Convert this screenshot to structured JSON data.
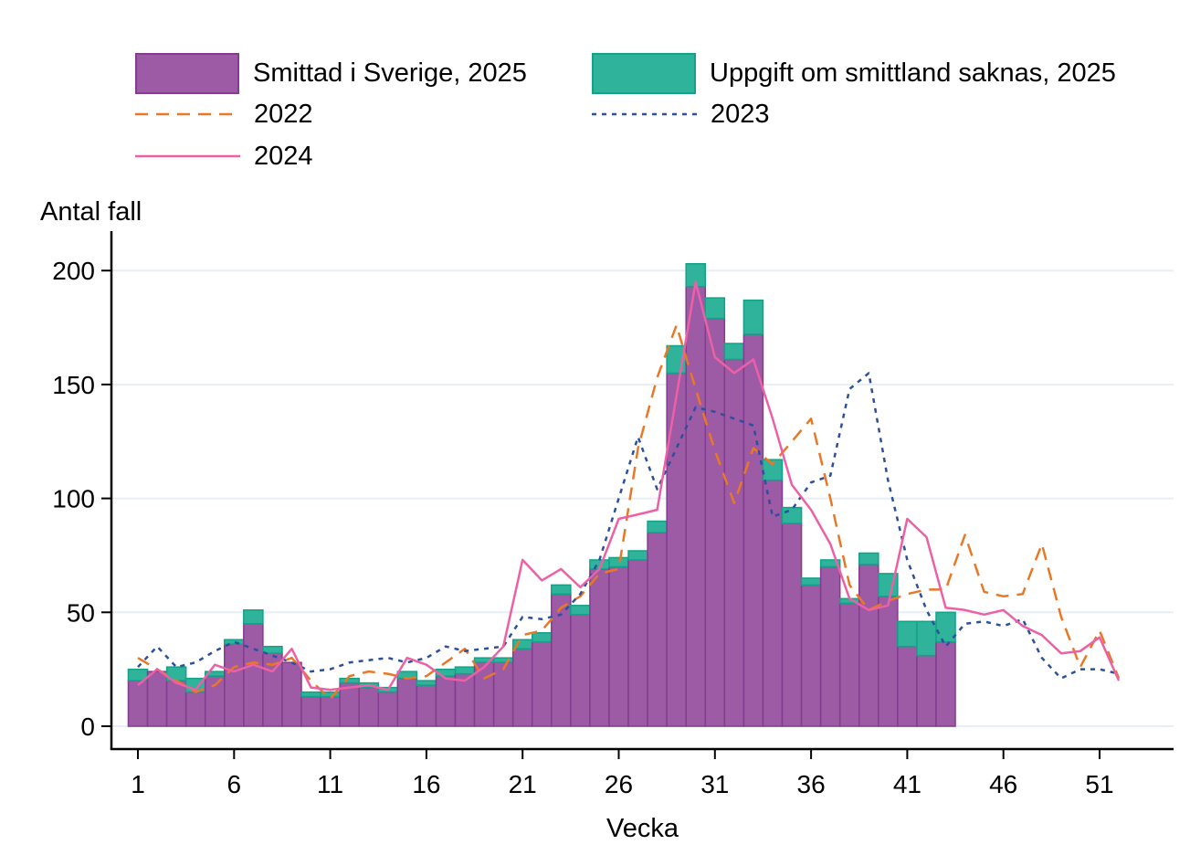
{
  "figure": {
    "y_axis_title": "Antal fall",
    "x_axis_title": "Vecka",
    "y_ticks": [
      0,
      50,
      100,
      150,
      200
    ],
    "x_ticks": [
      1,
      6,
      11,
      16,
      21,
      26,
      31,
      36,
      41,
      46,
      51
    ]
  },
  "legend": [
    {
      "id": "smittad",
      "label": "Smittad i Sverige, 2025",
      "swatch": "rect",
      "color": "#9C5BA4",
      "border": "#833C8E"
    },
    {
      "id": "saknas",
      "label": "Uppgift om smittland saknas, 2025",
      "swatch": "rect",
      "color": "#2FB39A",
      "border": "#13A287"
    },
    {
      "id": "y2022",
      "label": "2022",
      "swatch": "line",
      "dash": "long",
      "color": "#E97826"
    },
    {
      "id": "y2023",
      "label": "2023",
      "swatch": "line",
      "dash": "short",
      "color": "#2C4F9E"
    },
    {
      "id": "y2024",
      "label": "2024",
      "swatch": "line",
      "dash": "none",
      "color": "#ED60A5"
    }
  ],
  "chart_data": {
    "type": "bar+line",
    "title": "",
    "xlabel": "Vecka",
    "ylabel": "Antal fall",
    "ylim": [
      0,
      217
    ],
    "xlim": [
      0,
      54
    ],
    "grid": "horizontal",
    "gridline_color": "#E7EEF5",
    "legend_position": "top",
    "bar_weeks": [
      1,
      2,
      3,
      4,
      5,
      6,
      7,
      8,
      9,
      10,
      11,
      12,
      13,
      14,
      15,
      16,
      17,
      18,
      19,
      20,
      21,
      22,
      23,
      24,
      25,
      26,
      27,
      28,
      29,
      30,
      31,
      32,
      33,
      34,
      35,
      36,
      37,
      38,
      39,
      40,
      41,
      42,
      43
    ],
    "bar_series": [
      {
        "name": "Smittad i Sverige, 2025",
        "color": "#9C5BA4",
        "border": "#833C8E",
        "values": [
          20,
          24,
          20,
          15,
          22,
          36,
          45,
          32,
          28,
          13,
          13,
          19,
          17,
          15,
          21,
          18,
          22,
          23,
          28,
          28,
          34,
          37,
          58,
          49,
          69,
          70,
          73,
          85,
          155,
          193,
          179,
          161,
          172,
          108,
          89,
          62,
          70,
          54,
          71,
          57,
          35,
          31,
          37
        ]
      },
      {
        "name": "Uppgift om smittland saknas, 2025",
        "color": "#2FB39A",
        "border": "#13A287",
        "values": [
          5,
          0,
          6,
          6,
          2,
          2,
          6,
          3,
          0,
          2,
          2,
          2,
          2,
          2,
          3,
          2,
          3,
          3,
          2,
          2,
          4,
          4,
          4,
          4,
          4,
          4,
          4,
          5,
          12,
          10,
          9,
          7,
          15,
          9,
          7,
          3,
          3,
          2,
          5,
          10,
          11,
          15,
          13
        ]
      }
    ],
    "line_weeks": [
      1,
      2,
      3,
      4,
      5,
      6,
      7,
      8,
      9,
      10,
      11,
      12,
      13,
      14,
      15,
      16,
      17,
      18,
      19,
      20,
      21,
      22,
      23,
      24,
      25,
      26,
      27,
      28,
      29,
      30,
      31,
      32,
      33,
      34,
      35,
      36,
      37,
      38,
      39,
      40,
      41,
      42,
      43,
      44,
      45,
      46,
      47,
      48,
      49,
      50,
      51,
      52
    ],
    "line_series": [
      {
        "name": "2022",
        "color": "#E97826",
        "dash": "long",
        "values": [
          30,
          25,
          20,
          15,
          18,
          26,
          28,
          27,
          30,
          20,
          12,
          22,
          24,
          23,
          21,
          22,
          28,
          34,
          21,
          25,
          40,
          42,
          52,
          57,
          67,
          69,
          122,
          153,
          176,
          148,
          121,
          98,
          122,
          115,
          125,
          135,
          100,
          62,
          51,
          55,
          58,
          60,
          60,
          84,
          59,
          57,
          58,
          80,
          48,
          26,
          42,
          21
        ]
      },
      {
        "name": "2023",
        "color": "#2C4F9E",
        "dash": "short",
        "values": [
          26,
          35,
          26,
          28,
          33,
          37,
          34,
          31,
          28,
          24,
          25,
          28,
          29,
          30,
          28,
          30,
          35,
          33,
          34,
          35,
          48,
          47,
          49,
          58,
          73,
          100,
          127,
          104,
          122,
          140,
          138,
          135,
          132,
          92,
          95,
          107,
          110,
          148,
          155,
          108,
          73,
          51,
          35,
          45,
          46,
          44,
          47,
          30,
          21,
          25,
          25,
          23
        ]
      },
      {
        "name": "2024",
        "color": "#ED60A5",
        "dash": "none",
        "values": [
          18,
          25,
          19,
          16,
          27,
          24,
          27,
          24,
          34,
          17,
          16,
          17,
          18,
          16,
          30,
          27,
          21,
          20,
          26,
          35,
          73,
          64,
          69,
          61,
          69,
          91,
          93,
          95,
          145,
          195,
          162,
          155,
          161,
          135,
          106,
          95,
          80,
          56,
          51,
          53,
          91,
          83,
          52,
          51,
          49,
          51,
          44,
          40,
          32,
          33,
          39,
          20
        ]
      }
    ]
  }
}
